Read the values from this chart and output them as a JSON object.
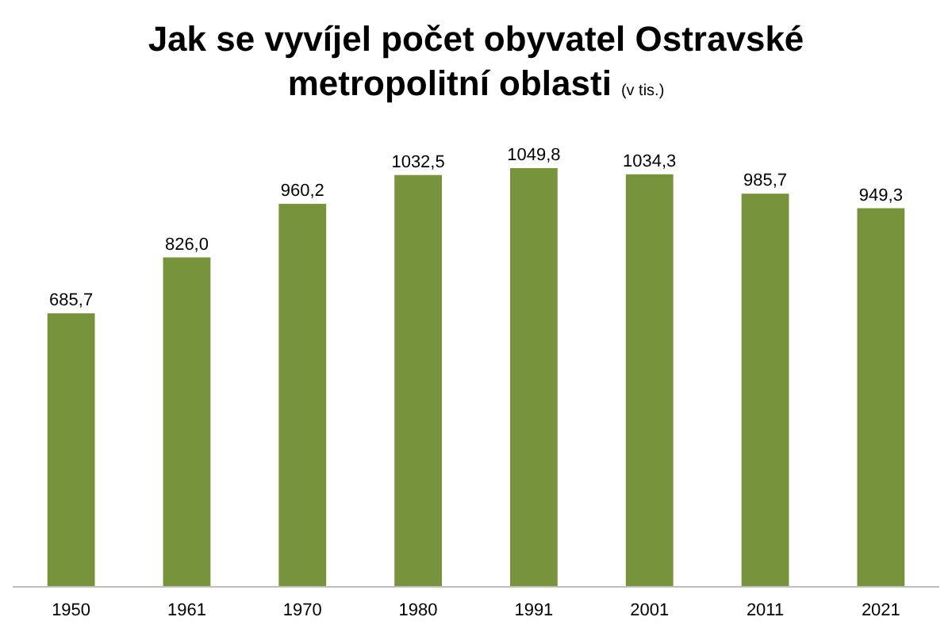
{
  "chart_data": {
    "type": "bar",
    "title": "Jak se vyvíjel počet obyvatel Ostravské metropolitní oblasti",
    "subtitle": "(v tis.)",
    "categories": [
      "1950",
      "1961",
      "1970",
      "1980",
      "1991",
      "2001",
      "2011",
      "2021"
    ],
    "values": [
      685.7,
      826.0,
      960.2,
      1032.5,
      1049.8,
      1034.3,
      985.7,
      949.3
    ],
    "value_labels": [
      "685,7",
      "826,0",
      "960,2",
      "1032,5",
      "1049,8",
      "1034,3",
      "985,7",
      "949,3"
    ],
    "color": "#77933c",
    "tick_labels": "x"
  }
}
